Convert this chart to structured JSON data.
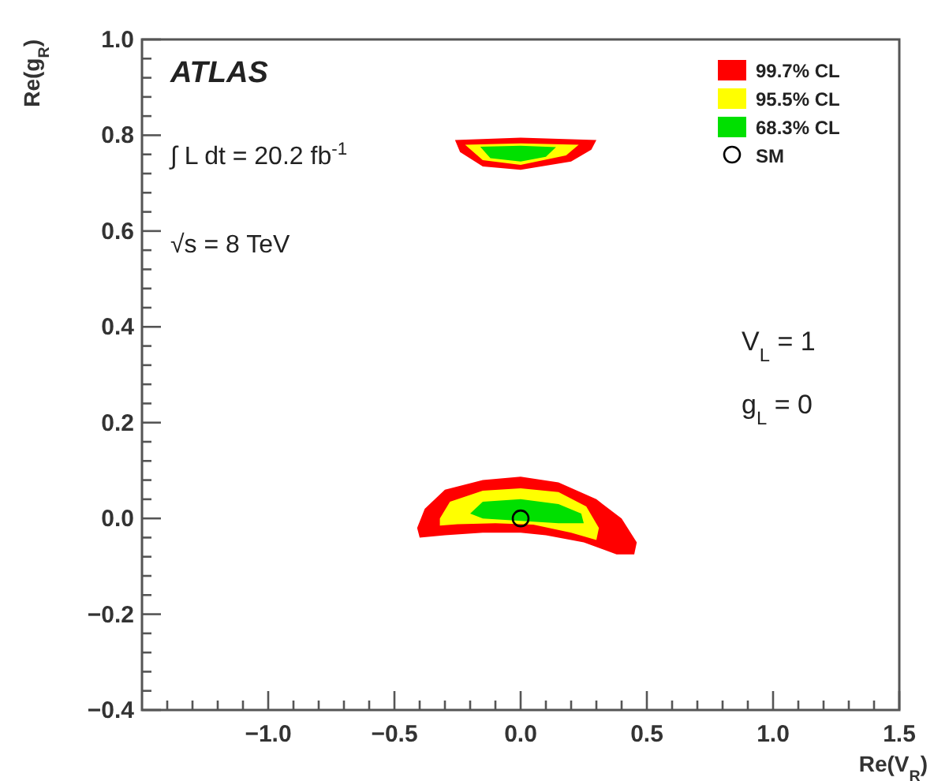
{
  "chart_data": {
    "type": "area",
    "xlabel": "Re(V$_{R}$)",
    "ylabel": "Re(g$_{R}$)",
    "annotations": [
      "ATLAS",
      "∫ L dt = 20.2 fb$^{-1}$",
      "√s = 8 TeV",
      "V$_{L}$ = 1",
      "g$_{L}$ = 0"
    ],
    "xlim": [
      -1.5,
      1.5
    ],
    "xticks": [
      {
        "value": -1.4,
        "label": null
      },
      {
        "value": -1.3,
        "label": null
      },
      {
        "value": -1.2,
        "label": null
      },
      {
        "value": -1.1,
        "label": null
      },
      {
        "value": -1,
        "label": "−1.0"
      },
      {
        "value": -0.9,
        "label": null
      },
      {
        "value": -0.8,
        "label": null
      },
      {
        "value": -0.7,
        "label": null
      },
      {
        "value": -0.6,
        "label": null
      },
      {
        "value": -0.5,
        "label": "−0.5"
      },
      {
        "value": -0.4,
        "label": null
      },
      {
        "value": -0.3,
        "label": null
      },
      {
        "value": -0.2,
        "label": null
      },
      {
        "value": -0.1,
        "label": null
      },
      {
        "value": 0,
        "label": "0.0"
      },
      {
        "value": 0.1,
        "label": null
      },
      {
        "value": 0.2,
        "label": null
      },
      {
        "value": 0.3,
        "label": null
      },
      {
        "value": 0.4,
        "label": null
      },
      {
        "value": 0.5,
        "label": "0.5"
      },
      {
        "value": 0.6,
        "label": null
      },
      {
        "value": 0.7,
        "label": null
      },
      {
        "value": 0.8,
        "label": null
      },
      {
        "value": 0.9,
        "label": null
      },
      {
        "value": 1,
        "label": "1.0"
      },
      {
        "value": 1.1,
        "label": null
      },
      {
        "value": 1.2,
        "label": null
      },
      {
        "value": 1.3,
        "label": null
      },
      {
        "value": 1.4,
        "label": null
      },
      {
        "value": 1.5,
        "label": "1.5"
      }
    ],
    "ylim": [
      -0.4,
      1.0
    ],
    "yticks": [
      {
        "value": -0.4,
        "label": "−0.4"
      },
      {
        "value": -0.36,
        "label": null
      },
      {
        "value": -0.32,
        "label": null
      },
      {
        "value": -0.28,
        "label": null
      },
      {
        "value": -0.24,
        "label": null
      },
      {
        "value": -0.2,
        "label": "−0.2"
      },
      {
        "value": -0.16,
        "label": null
      },
      {
        "value": -0.12,
        "label": null
      },
      {
        "value": -0.08,
        "label": null
      },
      {
        "value": -0.04,
        "label": null
      },
      {
        "value": 0,
        "label": "0.0"
      },
      {
        "value": 0.04,
        "label": null
      },
      {
        "value": 0.08,
        "label": null
      },
      {
        "value": 0.12,
        "label": null
      },
      {
        "value": 0.16,
        "label": null
      },
      {
        "value": 0.2,
        "label": "0.2"
      },
      {
        "value": 0.24,
        "label": null
      },
      {
        "value": 0.28,
        "label": null
      },
      {
        "value": 0.32,
        "label": null
      },
      {
        "value": 0.36,
        "label": null
      },
      {
        "value": 0.4,
        "label": "0.4"
      },
      {
        "value": 0.44,
        "label": null
      },
      {
        "value": 0.48,
        "label": null
      },
      {
        "value": 0.52,
        "label": null
      },
      {
        "value": 0.56,
        "label": null
      },
      {
        "value": 0.6,
        "label": "0.6"
      },
      {
        "value": 0.64,
        "label": null
      },
      {
        "value": 0.68,
        "label": null
      },
      {
        "value": 0.72,
        "label": null
      },
      {
        "value": 0.76,
        "label": null
      },
      {
        "value": 0.8,
        "label": "0.8"
      },
      {
        "value": 0.84,
        "label": null
      },
      {
        "value": 0.88,
        "label": null
      },
      {
        "value": 0.92,
        "label": null
      },
      {
        "value": 0.96,
        "label": null
      },
      {
        "value": 1.0,
        "label": "1.0"
      }
    ],
    "legend": "top right",
    "grid": false,
    "series": [
      {
        "name": "99.7% CL",
        "color": "#ff0000",
        "x": [
          -0.41,
          -0.38,
          -0.3,
          -0.15,
          0,
          0.15,
          0.3,
          0.4,
          0.46,
          0.45,
          0.38,
          0.25,
          0.1,
          0,
          -0.15,
          -0.3,
          -0.4,
          -0.41,
          null,
          -0.26,
          0,
          0.3,
          0.28,
          0.2,
          0,
          -0.15,
          -0.24,
          -0.26
        ],
        "values": [
          -0.02,
          0.02,
          0.06,
          0.08,
          0.087,
          0.075,
          0.04,
          0,
          -0.05,
          -0.075,
          -0.075,
          -0.05,
          -0.035,
          -0.03,
          -0.03,
          -0.035,
          -0.04,
          -0.02,
          null,
          0.79,
          0.795,
          0.79,
          0.77,
          0.745,
          0.728,
          0.735,
          0.765,
          0.79
        ]
      },
      {
        "name": "95.5% CL",
        "color": "#ffff00",
        "x": [
          -0.32,
          -0.28,
          -0.15,
          0,
          0.15,
          0.26,
          0.31,
          0.3,
          0.2,
          0.05,
          -0.1,
          -0.25,
          -0.32,
          -0.32,
          null,
          -0.22,
          0,
          0.23,
          0.18,
          0,
          -0.15,
          -0.22
        ],
        "values": [
          0,
          0.035,
          0.058,
          0.063,
          0.055,
          0.025,
          -0.02,
          -0.045,
          -0.03,
          -0.013,
          -0.01,
          -0.012,
          -0.015,
          0,
          null,
          0.78,
          0.783,
          0.78,
          0.758,
          0.738,
          0.748,
          0.78
        ]
      },
      {
        "name": "68.3% CL",
        "color": "#00e000",
        "x": [
          -0.2,
          -0.15,
          0,
          0.15,
          0.24,
          0.25,
          0.15,
          0,
          -0.15,
          -0.2,
          null,
          -0.16,
          0,
          0.14,
          0.1,
          0,
          -0.12,
          -0.16
        ],
        "values": [
          0.01,
          0.035,
          0.04,
          0.03,
          0.01,
          -0.01,
          -0.01,
          -0.005,
          0,
          0.01,
          null,
          0.776,
          0.778,
          0.775,
          0.755,
          0.745,
          0.752,
          0.776
        ]
      },
      {
        "name": "SM",
        "type": "scatter",
        "marker": "circle",
        "color": "#000000",
        "x": [
          0
        ],
        "values": [
          0
        ]
      }
    ]
  }
}
